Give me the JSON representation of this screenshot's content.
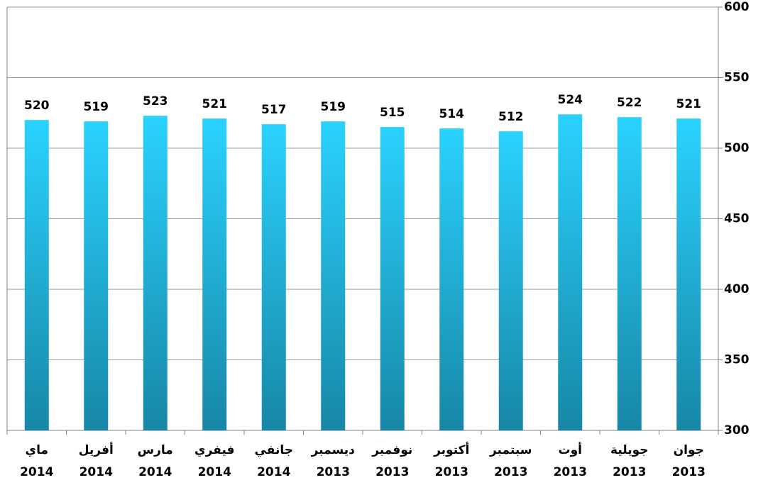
{
  "chart_data": {
    "type": "bar",
    "categories": [
      [
        "ماي",
        "2014"
      ],
      [
        "أفريل",
        "2014"
      ],
      [
        "مارس",
        "2014"
      ],
      [
        "فيفري",
        "2014"
      ],
      [
        "جانفي",
        "2014"
      ],
      [
        "ديسمبر",
        "2013"
      ],
      [
        "نوفمبر",
        "2013"
      ],
      [
        "أكتوبر",
        "2013"
      ],
      [
        "سبتمبر",
        "2013"
      ],
      [
        "أوت",
        "2013"
      ],
      [
        "جويلية",
        "2013"
      ],
      [
        "جوان",
        "2013"
      ]
    ],
    "values": [
      520,
      519,
      523,
      521,
      517,
      519,
      515,
      514,
      512,
      524,
      522,
      521
    ],
    "color": "#2bd2ff",
    "ylim": [
      300,
      600
    ],
    "yticks": [
      300,
      350,
      400,
      450,
      500,
      550,
      600
    ],
    "grid": true,
    "y_axis_side": "right"
  }
}
